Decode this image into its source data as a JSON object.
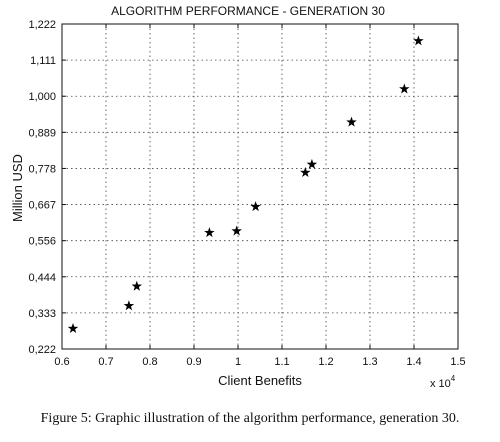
{
  "chart_data": {
    "type": "scatter",
    "title": "ALGORITHM PERFORMANCE - GENERATION 30",
    "xlabel": "Client Benefits",
    "ylabel": "Million USD",
    "x_multiplier_label": "x 10",
    "x_multiplier_exponent": "4",
    "xlim": [
      0.6,
      1.5
    ],
    "ylim": [
      0.222,
      1.222
    ],
    "x_ticks": [
      "0.6",
      "0.7",
      "0.8",
      "0.9",
      "1",
      "1.1",
      "1.2",
      "1.3",
      "1.4",
      "1.5"
    ],
    "y_ticks": [
      "0,222",
      "0,333",
      "0,444",
      "0,556",
      "0,667",
      "0,778",
      "0,889",
      "1,000",
      "1,111",
      "1,222"
    ],
    "grid": true,
    "marker": "star",
    "points": [
      {
        "x": 0.625,
        "y": 0.285
      },
      {
        "x": 0.752,
        "y": 0.355
      },
      {
        "x": 0.77,
        "y": 0.415
      },
      {
        "x": 0.935,
        "y": 0.58
      },
      {
        "x": 0.997,
        "y": 0.585
      },
      {
        "x": 1.04,
        "y": 0.66
      },
      {
        "x": 1.153,
        "y": 0.765
      },
      {
        "x": 1.168,
        "y": 0.79
      },
      {
        "x": 1.258,
        "y": 0.92
      },
      {
        "x": 1.378,
        "y": 1.022
      },
      {
        "x": 1.41,
        "y": 1.17
      }
    ]
  },
  "caption": "Figure 5: Graphic illustration of the algorithm performance, generation 30."
}
